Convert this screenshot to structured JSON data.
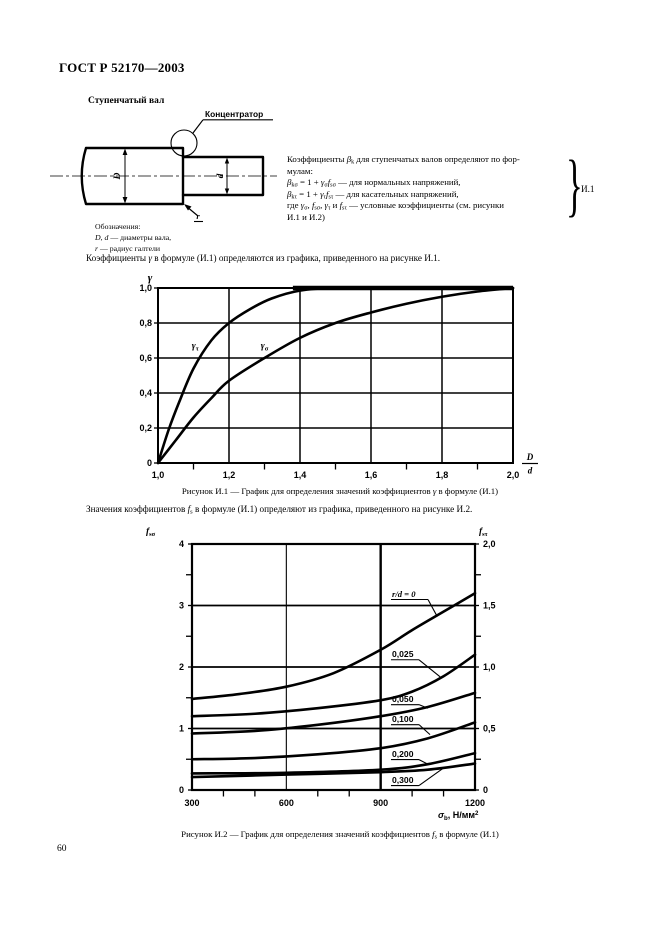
{
  "page": {
    "header": "ГОСТ Р 52170—2003",
    "number": "60"
  },
  "shaft": {
    "heading": "Ступенчатый вал",
    "concentrator": "Концентратор",
    "dim_large": "D",
    "dim_small": "d",
    "fillet": "r",
    "legend": {
      "title": "Обозначения:",
      "line1": [
        {
          "i": "D, d"
        },
        {
          "t": " — диаметры вала,"
        }
      ],
      "line2": [
        {
          "i": "r"
        },
        {
          "t": " — радиус галтели"
        }
      ]
    }
  },
  "formula_block": {
    "lines": [
      [
        {
          "t": "Коэффициенты "
        },
        {
          "i": "β"
        },
        {
          "s": "k"
        },
        {
          "t": " для ступенчатых валов определяют по фор-"
        }
      ],
      [
        {
          "t": "мулам:"
        }
      ],
      [
        {
          "i": "β"
        },
        {
          "s": "kσ"
        },
        {
          "t": " = 1 + "
        },
        {
          "i": "γ"
        },
        {
          "s": "σ"
        },
        {
          "i": "f"
        },
        {
          "s": "sσ"
        },
        {
          "t": " — для нормальных напряжений,"
        }
      ],
      [
        {
          "i": "β"
        },
        {
          "s": "kτ"
        },
        {
          "t": " = 1 + "
        },
        {
          "i": "γ"
        },
        {
          "s": "τ"
        },
        {
          "i": "f"
        },
        {
          "s": "sτ"
        },
        {
          "t": " — для касательных напряжений,"
        }
      ],
      [
        {
          "t": "где "
        },
        {
          "i": "γ"
        },
        {
          "s": "σ"
        },
        {
          "t": ", "
        },
        {
          "i": "f"
        },
        {
          "s": "sσ"
        },
        {
          "t": ", "
        },
        {
          "i": "γ"
        },
        {
          "s": "τ"
        },
        {
          "t": " и "
        },
        {
          "i": "f"
        },
        {
          "s": "sτ"
        },
        {
          "t": " — условные коэффициенты (см. рисунки"
        }
      ],
      [
        {
          "t": "И.1 и И.2)"
        }
      ]
    ],
    "ref": "И.1"
  },
  "para_gamma": [
    {
      "t": "Коэффициенты "
    },
    {
      "i": "γ"
    },
    {
      "t": " в формуле (И.1) определяются из графика, приведенного на рисунке И.1."
    }
  ],
  "figure1_caption": [
    {
      "t": "Рисунок И.1 — График для определения значений коэффициентов "
    },
    {
      "i": "γ"
    },
    {
      "t": " в формуле (И.1)"
    }
  ],
  "para_fs": [
    {
      "t": "Значения коэффициентов "
    },
    {
      "i": "f"
    },
    {
      "s": "s"
    },
    {
      "t": " в формуле (И.1) определяют из графика, приведенного на рисунке И.2."
    }
  ],
  "figure2_caption": [
    {
      "t": "Рисунок И.2 — График для определения значений коэффициентов "
    },
    {
      "i": "f"
    },
    {
      "s": "s"
    },
    {
      "t": " в формуле (И.1)"
    }
  ],
  "chart_data": [
    {
      "type": "line",
      "title": "Рисунок И.1",
      "ylabel": "γ",
      "xlabel_fraction": {
        "num": "D",
        "den": "d"
      },
      "xlim": [
        1.0,
        2.0
      ],
      "ylim": [
        0,
        1.0
      ],
      "grid": true,
      "x_ticks": [
        {
          "v": 1.0,
          "label": "1,0"
        },
        {
          "v": 1.2,
          "label": "1,2"
        },
        {
          "v": 1.4,
          "label": "1,4"
        },
        {
          "v": 1.6,
          "label": "1,6"
        },
        {
          "v": 1.8,
          "label": "1,8"
        },
        {
          "v": 2.0,
          "label": "2,0"
        }
      ],
      "x_minor": [
        1.1,
        1.3,
        1.5,
        1.7,
        1.9
      ],
      "y_ticks": [
        {
          "v": 0,
          "label": "0"
        },
        {
          "v": 0.2,
          "label": "0,2"
        },
        {
          "v": 0.4,
          "label": "0,4"
        },
        {
          "v": 0.6,
          "label": "0,6"
        },
        {
          "v": 0.8,
          "label": "0,8"
        },
        {
          "v": 1.0,
          "label": "1,0"
        }
      ],
      "x_grid": [
        1.2,
        1.4,
        1.6,
        1.8
      ],
      "y_grid": [
        0.2,
        0.4,
        0.6,
        0.8
      ],
      "series": [
        {
          "name": "gamma-tau",
          "label": {
            "base": "γ",
            "sub": "τ"
          },
          "label_at": [
            1.105,
            0.655
          ],
          "points": [
            [
              1.0,
              0
            ],
            [
              1.03,
              0.19
            ],
            [
              1.06,
              0.35
            ],
            [
              1.1,
              0.54
            ],
            [
              1.15,
              0.7
            ],
            [
              1.2,
              0.8
            ],
            [
              1.26,
              0.88
            ],
            [
              1.32,
              0.94
            ],
            [
              1.4,
              0.985
            ],
            [
              1.5,
              1.0
            ],
            [
              1.7,
              1.0
            ],
            [
              2.0,
              1.0
            ]
          ]
        },
        {
          "name": "gamma-sigma",
          "label": {
            "base": "γ",
            "sub": "σ"
          },
          "label_at": [
            1.3,
            0.655
          ],
          "points": [
            [
              1.0,
              0
            ],
            [
              1.05,
              0.13
            ],
            [
              1.1,
              0.26
            ],
            [
              1.15,
              0.37
            ],
            [
              1.2,
              0.47
            ],
            [
              1.3,
              0.6
            ],
            [
              1.4,
              0.715
            ],
            [
              1.5,
              0.8
            ],
            [
              1.6,
              0.86
            ],
            [
              1.7,
              0.91
            ],
            [
              1.8,
              0.95
            ],
            [
              1.9,
              0.98
            ],
            [
              2.0,
              1.0
            ]
          ]
        }
      ]
    },
    {
      "type": "line",
      "title": "Рисунок И.2",
      "ylabel_left": {
        "base": "f",
        "sub": "sσ"
      },
      "ylabel_right": {
        "base": "f",
        "sub": "sτ"
      },
      "xlabel": [
        {
          "i": "σ"
        },
        {
          "s": "b"
        },
        {
          "t": ", Н/мм"
        },
        {
          "sup": "2"
        }
      ],
      "xlim": [
        300,
        1200
      ],
      "ylim_left": [
        0,
        4
      ],
      "ylim_right": [
        0,
        2
      ],
      "grid": true,
      "x_ticks": [
        {
          "v": 300,
          "label": "300"
        },
        {
          "v": 600,
          "label": "600"
        },
        {
          "v": 900,
          "label": "900"
        },
        {
          "v": 1200,
          "label": "1200"
        }
      ],
      "x_minor": [
        400,
        500,
        700,
        800,
        1000,
        1100
      ],
      "y_left_ticks": [
        {
          "v": 0,
          "label": "0"
        },
        {
          "v": 1,
          "label": "1"
        },
        {
          "v": 2,
          "label": "2"
        },
        {
          "v": 3,
          "label": "3"
        },
        {
          "v": 4,
          "label": "4"
        }
      ],
      "y_left_minor": [
        0.5,
        1.5,
        2.5,
        3.5
      ],
      "y_right_ticks": [
        {
          "v": 0,
          "label": "0"
        },
        {
          "v": 0.5,
          "label": "0,5"
        },
        {
          "v": 1.0,
          "label": "1,0"
        },
        {
          "v": 1.5,
          "label": "1,5"
        },
        {
          "v": 2.0,
          "label": "2,0"
        }
      ],
      "y_right_minor": [
        0.25,
        0.75,
        1.25,
        1.75
      ],
      "x_grid": [
        {
          "v": 600,
          "w": 1.1
        },
        {
          "v": 900,
          "w": 2.4
        }
      ],
      "y_grid": [
        1,
        2,
        3
      ],
      "series": [
        {
          "name": "rd-0",
          "points": [
            [
              300,
              1.48
            ],
            [
              450,
              1.56
            ],
            [
              600,
              1.68
            ],
            [
              750,
              1.9
            ],
            [
              900,
              2.28
            ],
            [
              1000,
              2.6
            ],
            [
              1100,
              2.9
            ],
            [
              1200,
              3.2
            ]
          ]
        },
        {
          "name": "rd-0025",
          "points": [
            [
              300,
              1.2
            ],
            [
              500,
              1.24
            ],
            [
              700,
              1.33
            ],
            [
              900,
              1.46
            ],
            [
              1000,
              1.6
            ],
            [
              1100,
              1.85
            ],
            [
              1200,
              2.2
            ]
          ]
        },
        {
          "name": "rd-0050",
          "points": [
            [
              300,
              0.92
            ],
            [
              500,
              0.96
            ],
            [
              700,
              1.06
            ],
            [
              900,
              1.2
            ],
            [
              1050,
              1.35
            ],
            [
              1200,
              1.58
            ]
          ]
        },
        {
          "name": "rd-0100",
          "points": [
            [
              300,
              0.5
            ],
            [
              500,
              0.52
            ],
            [
              700,
              0.58
            ],
            [
              900,
              0.68
            ],
            [
              1050,
              0.84
            ],
            [
              1200,
              1.1
            ]
          ]
        },
        {
          "name": "rd-0200",
          "points": [
            [
              300,
              0.27
            ],
            [
              600,
              0.28
            ],
            [
              900,
              0.33
            ],
            [
              1050,
              0.42
            ],
            [
              1200,
              0.6
            ]
          ]
        },
        {
          "name": "rd-0300",
          "points": [
            [
              300,
              0.21
            ],
            [
              600,
              0.25
            ],
            [
              900,
              0.29
            ],
            [
              1050,
              0.33
            ],
            [
              1200,
              0.43
            ]
          ]
        }
      ],
      "annotations": [
        {
          "text": "r/d = 0",
          "italic": true,
          "ulen": 36,
          "lx": 936,
          "ly": 3.14,
          "tx": 1080,
          "ty": 2.82
        },
        {
          "text": "0,025",
          "ulen": 27,
          "lx": 936,
          "ly": 2.16,
          "tx": 1089,
          "ty": 1.84
        },
        {
          "text": "0,050",
          "ulen": 27,
          "lx": 936,
          "ly": 1.43,
          "tx": 1050,
          "ty": 1.33
        },
        {
          "text": "0,100",
          "ulen": 27,
          "lx": 936,
          "ly": 1.105,
          "tx": 1057,
          "ty": 0.9
        },
        {
          "text": "0,200",
          "ulen": 27,
          "lx": 936,
          "ly": 0.537,
          "tx": 1050,
          "ty": 0.42
        },
        {
          "text": "0,300",
          "ulen": 27,
          "lx": 936,
          "ly": 0.114,
          "tx": 1098,
          "ty": 0.35
        }
      ]
    }
  ]
}
